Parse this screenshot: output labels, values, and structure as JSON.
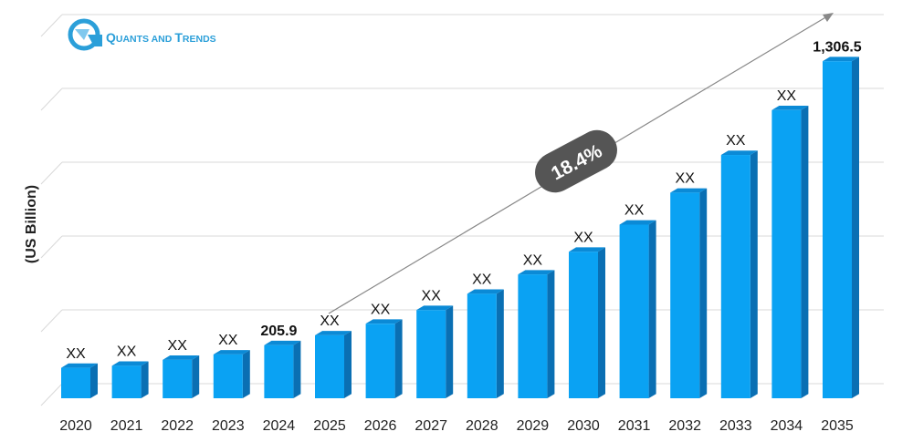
{
  "logo": {
    "text_q": "Q",
    "text_uants": "UANTS AND",
    "text_t": "T",
    "text_rends": "RENDS",
    "icon": "quants-and-trends-logo-icon",
    "brand_color": "#2b9fd9"
  },
  "cagr": {
    "label": "18.4%",
    "bubble_color": "#555555"
  },
  "colors": {
    "bar_front": "#0aa2f3",
    "bar_side": "#0a6fb3",
    "bar_top": "#0b8ad6",
    "grid": "#d9d9d9",
    "trend_arrow": "#888888"
  },
  "chart_data": {
    "type": "bar",
    "ylabel": "(US Billion)",
    "xlabel": "",
    "title": "",
    "categories": [
      "2020",
      "2021",
      "2022",
      "2023",
      "2024",
      "2025",
      "2026",
      "2027",
      "2028",
      "2029",
      "2030",
      "2031",
      "2032",
      "2033",
      "2034",
      "2035"
    ],
    "values": [
      118,
      126,
      149,
      170,
      205.9,
      244,
      289,
      342,
      405,
      480,
      568,
      673,
      797,
      943,
      1117,
      1306.5
    ],
    "data_labels": [
      "XX",
      "XX",
      "XX",
      "XX",
      "205.9",
      "XX",
      "XX",
      "XX",
      "XX",
      "XX",
      "XX",
      "XX",
      "XX",
      "XX",
      "XX",
      "1,306.5"
    ],
    "bold_labels": [
      "2024",
      "2035"
    ],
    "ylim": [
      0,
      1420
    ],
    "grid": true,
    "legend": "none"
  }
}
